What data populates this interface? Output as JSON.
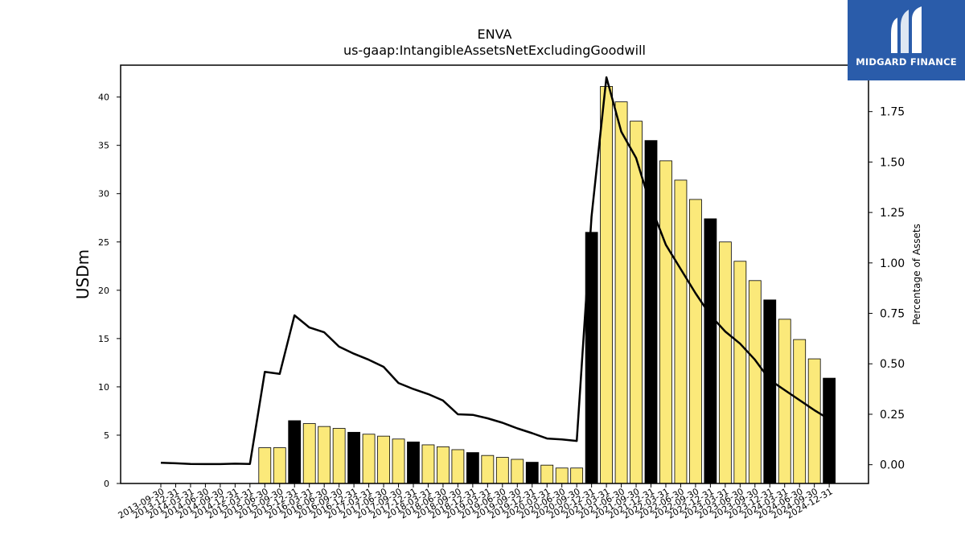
{
  "chart_data": {
    "type": "bar",
    "title": "ENVA",
    "subtitle": "us-gaap:IntangibleAssetsNetExcludingGoodwill",
    "ylabel": "USDm",
    "y2label": "Percentage of Assets",
    "ylim": [
      0,
      43.3
    ],
    "y2lim": [
      -0.093,
      1.98
    ],
    "yticks": [
      0,
      5,
      10,
      15,
      20,
      25,
      30,
      35,
      40
    ],
    "y2ticks": [
      "0.00",
      "0.25",
      "0.50",
      "0.75",
      "1.00",
      "1.25",
      "1.50",
      "1.75"
    ],
    "colors": {
      "bar_default": "#fbe97a",
      "bar_highlight": "#000000",
      "line": "#000000"
    },
    "categories": [
      "2013-09-30",
      "2013-12-31",
      "2014-03-31",
      "2014-06-30",
      "2014-09-30",
      "2014-12-31",
      "2015-03-31",
      "2015-06-30",
      "2015-09-30",
      "2015-12-31",
      "2016-03-31",
      "2016-06-30",
      "2016-09-30",
      "2016-12-31",
      "2017-03-31",
      "2017-06-30",
      "2017-09-30",
      "2017-12-31",
      "2018-03-31",
      "2018-06-30",
      "2018-09-30",
      "2018-12-31",
      "2019-03-31",
      "2019-06-30",
      "2019-09-30",
      "2019-12-31",
      "2020-03-31",
      "2020-06-30",
      "2020-09-30",
      "2020-12-31",
      "2021-03-31",
      "2021-06-30",
      "2021-09-30",
      "2021-12-31",
      "2022-03-31",
      "2022-06-30",
      "2022-09-30",
      "2022-12-31",
      "2023-03-31",
      "2023-06-30",
      "2023-09-30",
      "2023-12-31",
      "2024-03-31",
      "2024-06-30",
      "2024-09-30",
      "2024-12-31"
    ],
    "series": [
      {
        "kind": "bar",
        "axis": "left",
        "values": [
          0,
          0,
          0,
          0,
          0,
          0,
          0,
          3.7,
          3.7,
          6.5,
          6.2,
          5.9,
          5.7,
          5.3,
          5.1,
          4.9,
          4.6,
          4.3,
          4.0,
          3.8,
          3.5,
          3.2,
          2.9,
          2.7,
          2.5,
          2.2,
          1.9,
          1.6,
          1.6,
          26.0,
          41.1,
          39.5,
          37.5,
          35.5,
          33.4,
          31.4,
          29.4,
          27.4,
          25.0,
          23.0,
          21.0,
          19.0,
          17.0,
          14.9,
          12.9,
          10.9
        ],
        "highlight": [
          false,
          false,
          false,
          false,
          false,
          false,
          false,
          false,
          false,
          true,
          false,
          false,
          false,
          true,
          false,
          false,
          false,
          true,
          false,
          false,
          false,
          true,
          false,
          false,
          false,
          true,
          false,
          false,
          false,
          true,
          false,
          false,
          false,
          true,
          false,
          false,
          false,
          true,
          false,
          false,
          false,
          true,
          false,
          false,
          false,
          true
        ]
      },
      {
        "kind": "line",
        "axis": "right",
        "values": [
          0.01,
          0.007,
          0.004,
          0.003,
          0.003,
          0.005,
          0.004,
          0.46,
          0.45,
          0.74,
          0.68,
          0.656,
          0.585,
          0.55,
          0.52,
          0.485,
          0.405,
          0.375,
          0.35,
          0.318,
          0.25,
          0.247,
          0.23,
          0.208,
          0.18,
          0.156,
          0.13,
          0.125,
          0.118,
          1.23,
          1.92,
          1.65,
          1.52,
          1.28,
          1.09,
          0.97,
          0.85,
          0.74,
          0.66,
          0.6,
          0.52,
          0.42,
          0.37,
          0.32,
          0.27,
          0.225
        ]
      }
    ],
    "grid": false
  },
  "logo": {
    "text": "MIDGARD FINANCE"
  }
}
